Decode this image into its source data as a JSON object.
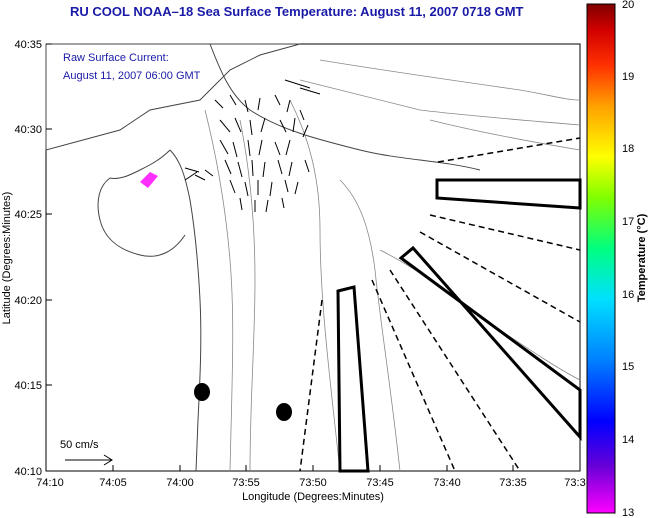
{
  "title": "RU COOL  NOAA–18  Sea Surface Temperature:  August 11, 2007 0718 GMT",
  "annotation": {
    "line1": "Raw Surface Current:",
    "line2": "August 11, 2007 06:00 GMT"
  },
  "scale": {
    "label": "50 cm/s"
  },
  "axes": {
    "xlabel": "Longitude (Degrees:Minutes)",
    "ylabel": "Latitude (Degrees:Minutes)",
    "xticks": [
      "74:10",
      "74:05",
      "74:00",
      "73:55",
      "73:50",
      "73:45",
      "73:40",
      "73:35",
      "73:3"
    ],
    "yticks": [
      "40:35",
      "40:30",
      "40:25",
      "40:20",
      "40:15",
      "40:10"
    ]
  },
  "colorbar": {
    "label": "Temperature (°C)",
    "ticks": [
      "20",
      "19",
      "18",
      "17",
      "16",
      "15",
      "14",
      "13"
    ],
    "colors": [
      "#ff00ff",
      "#6a00d8",
      "#0000ff",
      "#0080ff",
      "#00e0ff",
      "#00ff80",
      "#80ff00",
      "#ffff00",
      "#ffa000",
      "#ff3000",
      "#d00000",
      "#800000"
    ]
  },
  "chart_data": {
    "type": "map",
    "title": "RU COOL  NOAA–18  Sea Surface Temperature:  August 11, 2007 0718 GMT",
    "xlabel": "Longitude (Degrees:Minutes)",
    "ylabel": "Latitude (Degrees:Minutes)",
    "colorbar_range": [
      13,
      20
    ],
    "colorbar_unit": "°C"
  }
}
